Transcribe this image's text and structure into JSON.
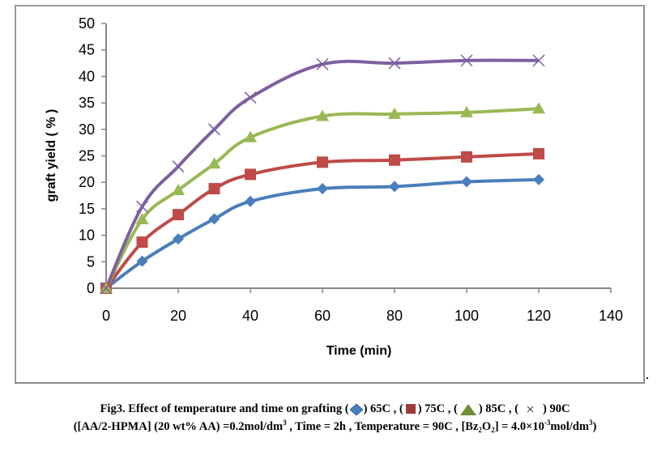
{
  "chart_data": {
    "type": "line",
    "title": "",
    "xlabel": "Time (min)",
    "ylabel": "graft yield ( % )",
    "xlim": [
      0,
      140
    ],
    "ylim": [
      0,
      50
    ],
    "xticks": [
      0,
      20,
      40,
      60,
      80,
      100,
      120,
      140
    ],
    "yticks": [
      0,
      5,
      10,
      15,
      20,
      25,
      30,
      35,
      40,
      45,
      50
    ],
    "grid": false,
    "legend": "none (described in caption)",
    "x": [
      0,
      10,
      20,
      30,
      40,
      60,
      80,
      100,
      120
    ],
    "series": [
      {
        "name": "65C",
        "marker": "diamond",
        "color": "#4a7ebb",
        "values": [
          0,
          5.1,
          9.3,
          13.1,
          16.4,
          18.8,
          19.2,
          20.1,
          20.5
        ]
      },
      {
        "name": "75C",
        "marker": "square",
        "color": "#be4b48",
        "values": [
          0,
          8.7,
          13.9,
          18.8,
          21.5,
          23.8,
          24.2,
          24.8,
          25.4
        ]
      },
      {
        "name": "85C",
        "marker": "triangle",
        "color": "#98b954",
        "values": [
          0,
          13.0,
          18.5,
          23.5,
          28.5,
          32.5,
          32.9,
          33.2,
          33.9
        ]
      },
      {
        "name": "90C",
        "marker": "x",
        "color": "#7d60a0",
        "values": [
          0,
          15.4,
          23.0,
          30.0,
          36.0,
          42.3,
          42.5,
          43.0,
          43.0
        ]
      }
    ]
  },
  "caption": {
    "line1_prefix": "Fig3. Effect of temperature and time on grafting (",
    "legend_items": [
      {
        "label": ") 65C ,  (",
        "marker": "diamond-icon"
      },
      {
        "label": ") 75C , (",
        "marker": "square-icon"
      },
      {
        "label": ") 85C , (",
        "marker": "triangle-icon"
      },
      {
        "label": ") 90C",
        "marker": "x-icon"
      }
    ],
    "line2_part1": "([AA/2-HPMA] (20 wt% AA) =0.2mol/dm",
    "line2_sup1": "3",
    "line2_part2": " , Time = 2h , Temperature = 90C , [Bz",
    "line2_sub1": "2",
    "line2_part3": "O",
    "line2_sub2": "2",
    "line2_part4": "] = 4.0×10",
    "line2_sup2": "-3",
    "line2_part5": "mol/dm",
    "line2_sup3": "3",
    "line2_part6": ")"
  }
}
